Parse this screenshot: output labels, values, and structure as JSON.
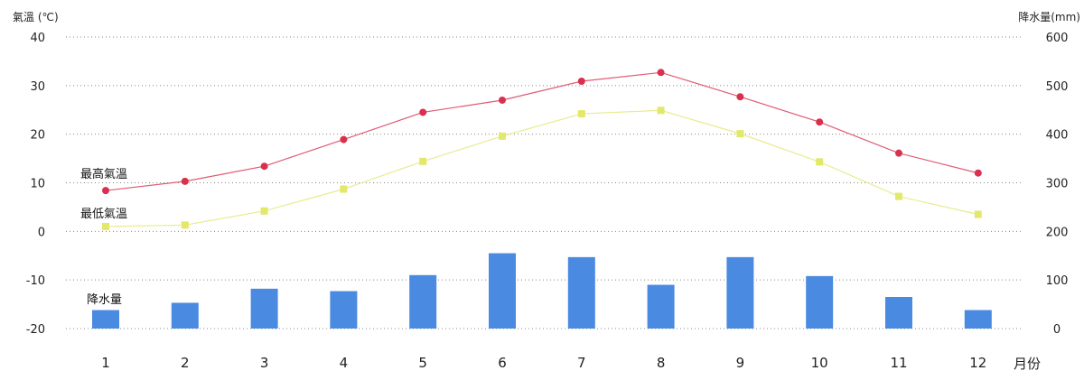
{
  "chart_data": {
    "type": "bar",
    "categories": [
      "1",
      "2",
      "3",
      "4",
      "5",
      "6",
      "7",
      "8",
      "9",
      "10",
      "11",
      "12"
    ],
    "xlabel": "月份",
    "ylabel_left": "氣溫 (℃)",
    "ylabel_right": "降水量(mm)",
    "ylim_left": [
      -20,
      40
    ],
    "ylim_right": [
      0,
      600
    ],
    "yticks_left": [
      40,
      30,
      20,
      10,
      0,
      -10,
      -20
    ],
    "yticks_right": [
      600,
      500,
      400,
      300,
      200,
      100,
      0
    ],
    "grid": true,
    "colors": {
      "high": "#d9304e",
      "high_line": "#e05a72",
      "low": "#e2e86a",
      "low_line": "#e8ec8e",
      "bar": "#4a8ae0"
    },
    "series": [
      {
        "name": "最高氣溫",
        "kind": "line",
        "axis": "left",
        "values": [
          8.4,
          10.3,
          13.4,
          18.9,
          24.5,
          27.0,
          30.9,
          32.7,
          27.7,
          22.5,
          16.1,
          12.0
        ]
      },
      {
        "name": "最低氣溫",
        "kind": "line",
        "axis": "left",
        "values": [
          1.0,
          1.3,
          4.2,
          8.7,
          14.4,
          19.6,
          24.2,
          24.9,
          20.1,
          14.3,
          7.2,
          3.5
        ]
      },
      {
        "name": "降水量",
        "kind": "bar",
        "axis": "right",
        "values": [
          38,
          53,
          82,
          77,
          110,
          155,
          147,
          90,
          147,
          108,
          65,
          38
        ]
      }
    ]
  }
}
